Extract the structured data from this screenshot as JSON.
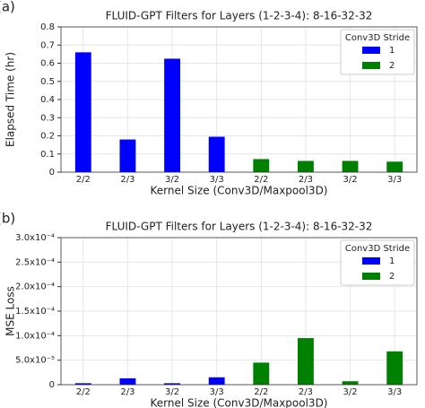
{
  "chart_data": [
    {
      "type": "bar",
      "panel_label": "(a)",
      "title": "FLUID-GPT Filters for Layers (1-2-3-4): 8-16-32-32",
      "x_label": "Kernel Size (Conv3D/Maxpool3D)",
      "y_label": "Elapsed Time (hr)",
      "categories": [
        "2/2",
        "2/3",
        "3/2",
        "3/3",
        "2/2",
        "2/3",
        "3/2",
        "3/3"
      ],
      "series": [
        {
          "name": "1",
          "color": "#0000ff",
          "values": [
            0.66,
            0.18,
            0.625,
            0.195,
            null,
            null,
            null,
            null
          ]
        },
        {
          "name": "2",
          "color": "#008000",
          "values": [
            null,
            null,
            null,
            null,
            0.072,
            0.062,
            0.062,
            0.058
          ]
        }
      ],
      "legend_title": "Conv3D Stride",
      "legend": "upper right",
      "ylim": [
        0,
        0.8
      ],
      "yticks": [
        0,
        0.1,
        0.2,
        0.3,
        0.4,
        0.5,
        0.6,
        0.7,
        0.8
      ],
      "grid": true
    },
    {
      "type": "bar",
      "panel_label": "(b)",
      "title": "FLUID-GPT Filters for Layers (1-2-3-4): 8-16-32-32",
      "x_label": "Kernel Size (Conv3D/Maxpool3D)",
      "y_label": "MSE Loss",
      "categories": [
        "2/2",
        "2/3",
        "3/2",
        "3/3",
        "2/2",
        "2/3",
        "3/2",
        "3/3"
      ],
      "series": [
        {
          "name": "1",
          "color": "#0000ff",
          "values": [
            3e-06,
            1.3e-05,
            3e-06,
            1.5e-05,
            null,
            null,
            null,
            null
          ]
        },
        {
          "name": "2",
          "color": "#008000",
          "values": [
            null,
            null,
            null,
            null,
            4.5e-05,
            9.5e-05,
            7e-06,
            6.8e-05
          ]
        }
      ],
      "legend_title": "Conv3D Stride",
      "legend": "upper right",
      "ylim": [
        0,
        0.0003
      ],
      "yticks": [
        0,
        {
          "value": 5e-05,
          "label": "5.0x10⁻⁵"
        },
        {
          "value": 0.0001,
          "label": "1.0x10⁻⁴"
        },
        {
          "value": 0.00015,
          "label": "1.5x10⁻⁴"
        },
        {
          "value": 0.0002,
          "label": "2.0x10⁻⁴"
        },
        {
          "value": 0.00025,
          "label": "2.5x10⁻⁴"
        },
        {
          "value": 0.0003,
          "label": "3.0x10⁻⁴"
        }
      ],
      "grid": true
    }
  ]
}
